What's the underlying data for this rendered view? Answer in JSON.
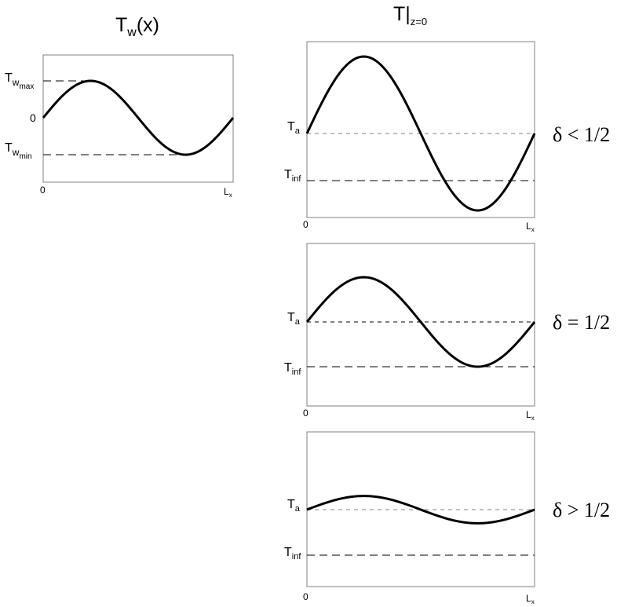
{
  "left_panel": {
    "title": "T",
    "title_sub": "w",
    "title_tail": "(x)",
    "y_labels": {
      "max_main": "T",
      "max_sub1": "w",
      "max_sub2": "max",
      "zero": "0",
      "min_main": "T",
      "min_sub1": "w",
      "min_sub2": "min"
    },
    "x_labels": {
      "start": "0",
      "end_main": "L",
      "end_sub": "x"
    },
    "curve": {
      "amplitude": 1.0,
      "offset": 0.0,
      "periods": 1
    }
  },
  "right_column": {
    "title": "T|",
    "title_sub": "z=0"
  },
  "panels": [
    {
      "condition": "δ < 1/2",
      "ta_main": "T",
      "ta_sub": "a",
      "tinf_main": "T",
      "tinf_sub": "inf",
      "x_start": "0",
      "x_end_main": "L",
      "x_end_sub": "x",
      "amplitude": 1.0,
      "inf_level": -0.6
    },
    {
      "condition": "δ = 1/2",
      "ta_main": "T",
      "ta_sub": "a",
      "tinf_main": "T",
      "tinf_sub": "inf",
      "x_start": "0",
      "x_end_main": "L",
      "x_end_sub": "x",
      "amplitude": 0.6,
      "inf_level": -0.6
    },
    {
      "condition": "δ > 1/2",
      "ta_main": "T",
      "ta_sub": "a",
      "tinf_main": "T",
      "tinf_sub": "inf",
      "x_start": "0",
      "x_end_main": "L",
      "x_end_sub": "x",
      "amplitude": 0.18,
      "inf_level": -0.6
    }
  ],
  "colors": {
    "curve": "#000000",
    "frame": "#808080",
    "dash": "#000000"
  }
}
